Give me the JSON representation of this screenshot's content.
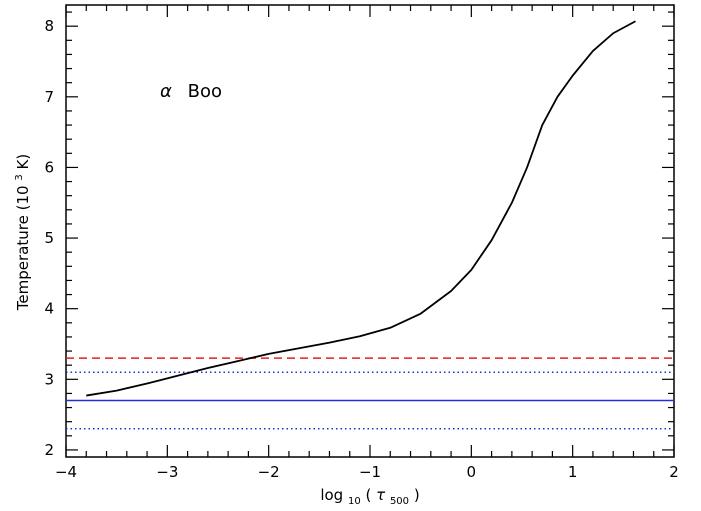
{
  "chart_data": {
    "type": "line",
    "annotation": {
      "symbol": "α",
      "star": "Boo"
    },
    "xlabel": {
      "prefix": "log",
      "sub": "10",
      "open": "(",
      "tau": "τ",
      "tau_sub": "500",
      "close": ")"
    },
    "ylabel": {
      "prefix": "Temperature (10",
      "sup": "3",
      "suffix": " K)"
    },
    "xlim": [
      -4,
      2
    ],
    "ylim": [
      1.9,
      8.3
    ],
    "xticks": [
      -4,
      -3,
      -2,
      -1,
      0,
      1,
      2
    ],
    "xtick_labels": [
      "−4",
      "−3",
      "−2",
      "−1",
      "0",
      "1",
      "2"
    ],
    "yticks": [
      2,
      3,
      4,
      5,
      6,
      7,
      8
    ],
    "ytick_labels": [
      "2",
      "3",
      "4",
      "5",
      "6",
      "7",
      "8"
    ],
    "grid": false,
    "legend": false,
    "series": [
      {
        "style": "solid",
        "color": "#000000",
        "x": [
          -3.8,
          -3.5,
          -3.2,
          -2.9,
          -2.6,
          -2.3,
          -2.0,
          -1.7,
          -1.4,
          -1.1,
          -0.8,
          -0.5,
          -0.2,
          0.0,
          0.2,
          0.4,
          0.55,
          0.7,
          0.85,
          1.0,
          1.2,
          1.4,
          1.62
        ],
        "y": [
          2.77,
          2.84,
          2.94,
          3.05,
          3.16,
          3.26,
          3.36,
          3.44,
          3.52,
          3.61,
          3.73,
          3.93,
          4.25,
          4.55,
          4.97,
          5.5,
          6.0,
          6.6,
          7.0,
          7.3,
          7.65,
          7.9,
          8.07
        ]
      }
    ],
    "hlines": [
      {
        "y": 3.3,
        "color": "#e02020",
        "style": "dashed"
      },
      {
        "y": 3.1,
        "color": "#2030d0",
        "style": "dotted"
      },
      {
        "y": 2.7,
        "color": "#2030d0",
        "style": "solid"
      },
      {
        "y": 2.3,
        "color": "#2030d0",
        "style": "dotted"
      }
    ]
  }
}
